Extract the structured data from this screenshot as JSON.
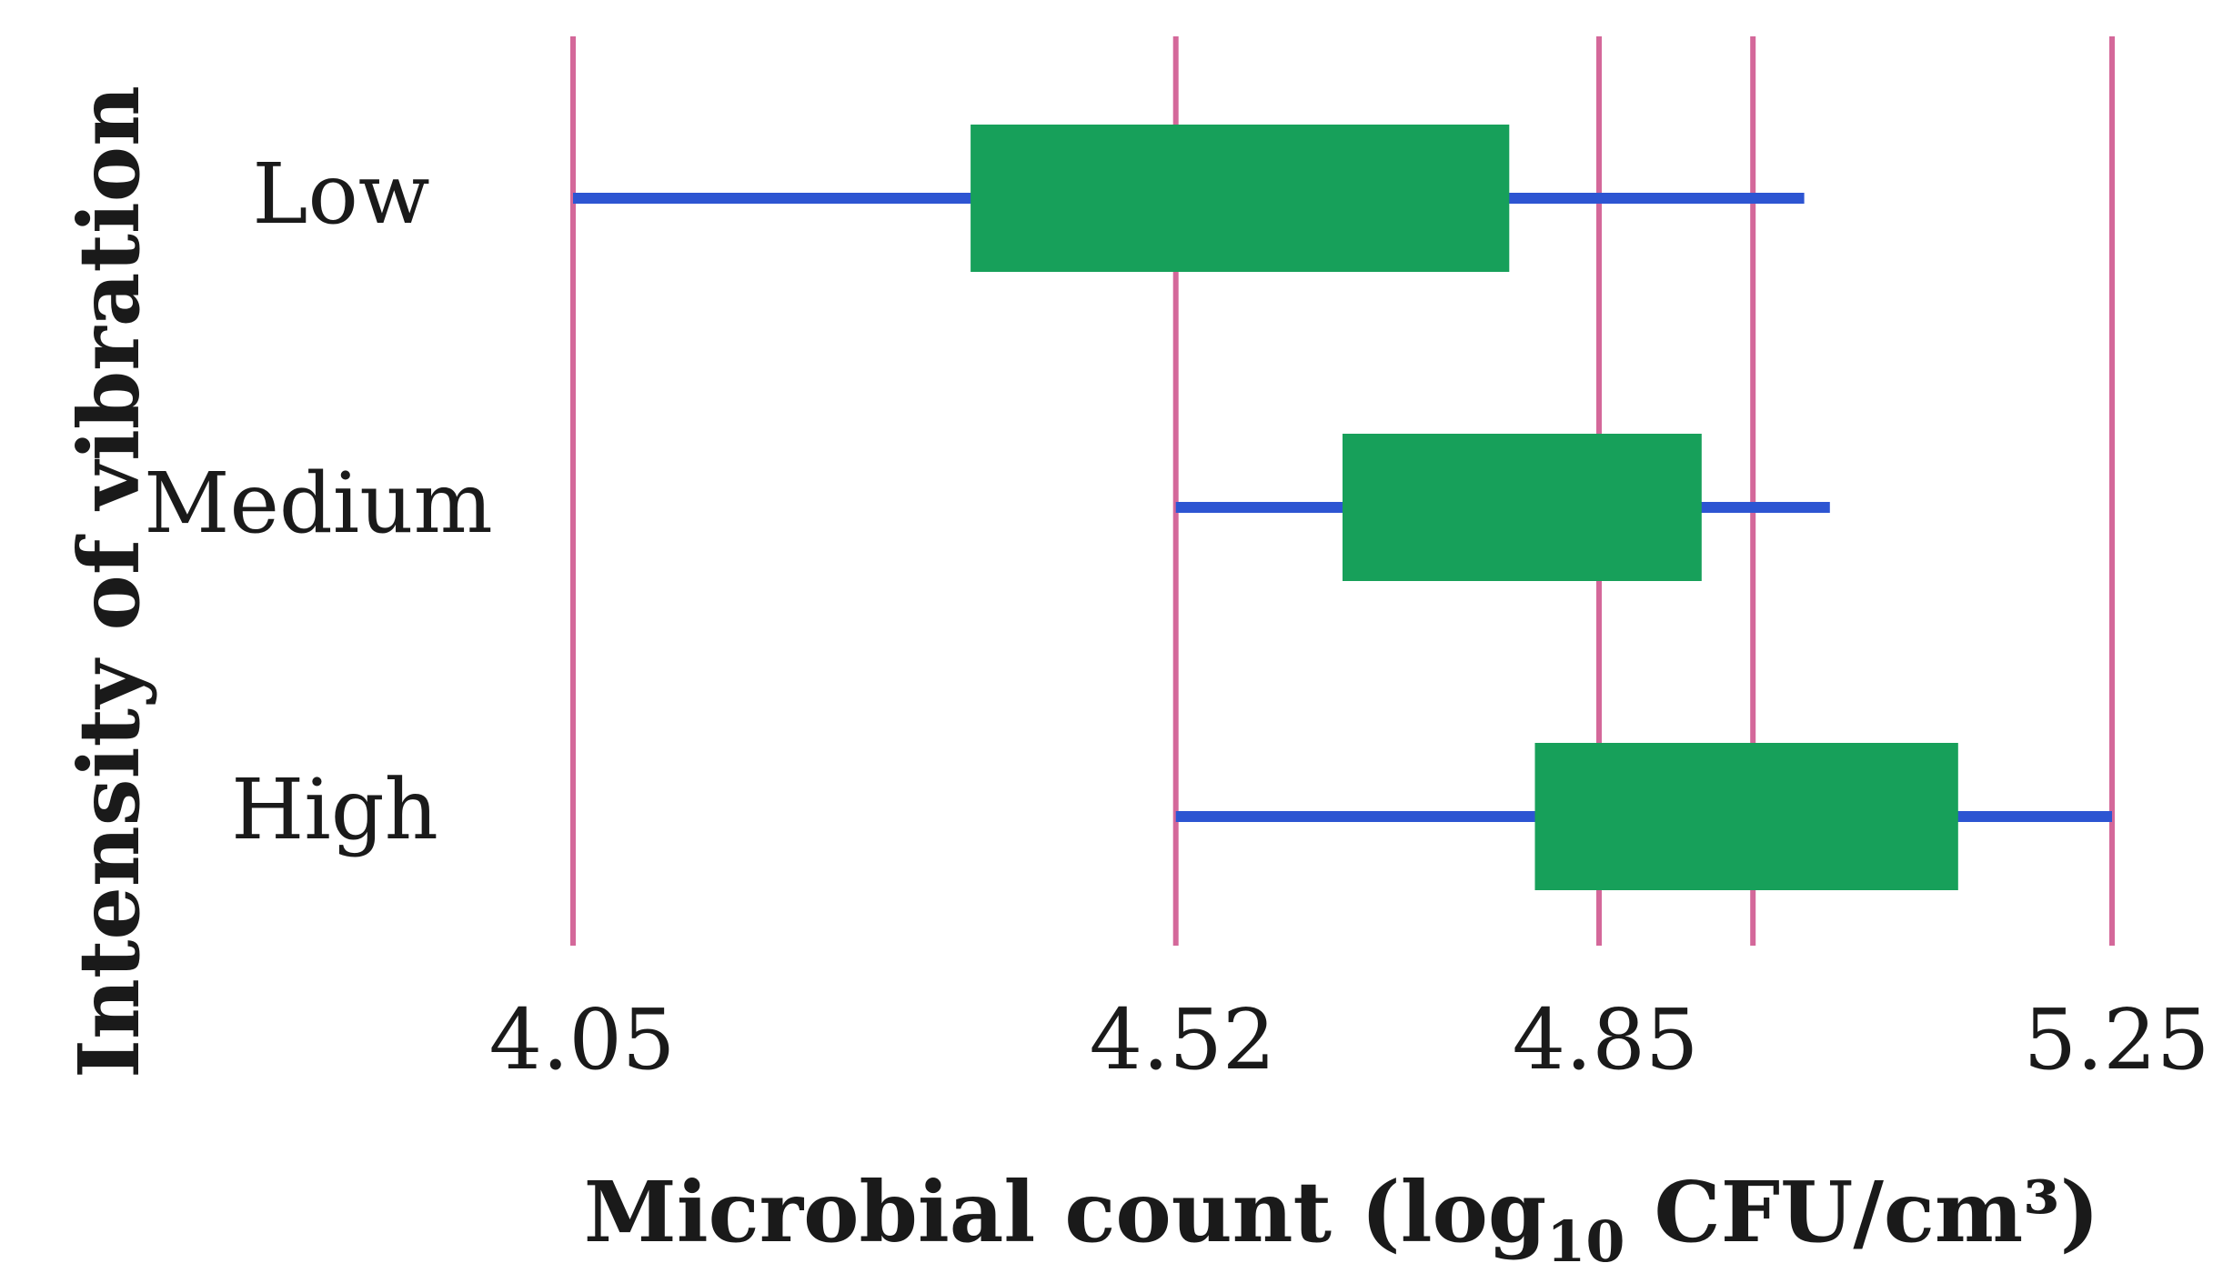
{
  "chart_data": {
    "type": "box",
    "orientation": "horizontal",
    "title": "",
    "xlabel": {
      "prefix": "Microbial count (log",
      "subscript": "10",
      "suffix": " CFU/cm³)"
    },
    "ylabel": "Intensity of vibration",
    "xlim": [
      4.05,
      5.25
    ],
    "xticks": [
      "4.05",
      "4.52",
      "4.85",
      "5.25"
    ],
    "gridlines_x": [
      4.05,
      4.52,
      4.85,
      4.97,
      5.25
    ],
    "categories": [
      "Low",
      "Medium",
      "High"
    ],
    "series": [
      {
        "name": "Low",
        "whisker_min": 4.05,
        "box_min": 4.36,
        "box_max": 4.78,
        "whisker_max": 5.01
      },
      {
        "name": "Medium",
        "whisker_min": 4.52,
        "box_min": 4.65,
        "box_max": 4.93,
        "whisker_max": 5.03
      },
      {
        "name": "High",
        "whisker_min": 4.52,
        "box_min": 4.8,
        "box_max": 5.13,
        "whisker_max": 5.25
      }
    ],
    "colors": {
      "grid": "#d4689a",
      "whisker": "#2d55d2",
      "box": "#17a05a"
    }
  }
}
